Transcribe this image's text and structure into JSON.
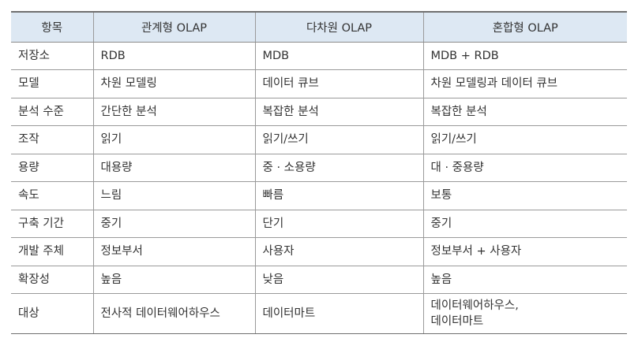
{
  "table": {
    "headers": [
      "항목",
      "관계형 OLAP",
      "다차원 OLAP",
      "혼합형 OLAP"
    ],
    "rows": [
      [
        "저장소",
        "RDB",
        "MDB",
        "MDB + RDB"
      ],
      [
        "모델",
        "차원 모델링",
        "데이터 큐브",
        "차원 모델링과 데이터 큐브"
      ],
      [
        "분석 수준",
        "간단한 분석",
        "복잡한 분석",
        "복잡한 분석"
      ],
      [
        "조작",
        "읽기",
        "읽기/쓰기",
        "읽기/쓰기"
      ],
      [
        "용량",
        "대용량",
        "중 · 소용량",
        "대 · 중용량"
      ],
      [
        "속도",
        "느림",
        "빠름",
        "보통"
      ],
      [
        "구축 기간",
        "중기",
        "단기",
        "중기"
      ],
      [
        "개발 주체",
        "정보부서",
        "사용자",
        "정보부서 + 사용자"
      ],
      [
        "확장성",
        "높음",
        "낮음",
        "높음"
      ],
      [
        "대상",
        "전사적 데이터웨어하우스",
        "데이터마트",
        [
          "데이터웨어하우스,",
          "데이터마트"
        ]
      ]
    ]
  },
  "colors": {
    "header_background": "#dde8f3",
    "border": "#9a9a9a",
    "text": "#333333"
  }
}
